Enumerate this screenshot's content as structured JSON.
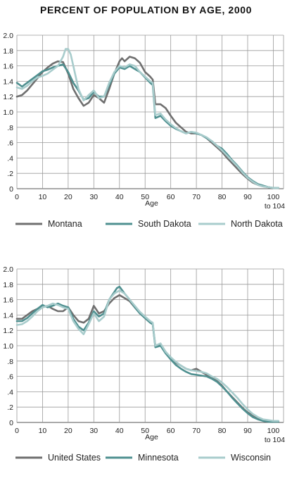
{
  "title": "PERCENT OF POPULATION BY AGE, 2000",
  "chart_data": [
    {
      "type": "line",
      "xlabel": "Age",
      "xlim": [
        0,
        104
      ],
      "ylim": [
        0,
        2.0
      ],
      "x_ticks": [
        "0",
        "10",
        "20",
        "30",
        "40",
        "50",
        "60",
        "70",
        "80",
        "90",
        "100"
      ],
      "x_end_label": "to 104",
      "y_ticks": [
        "0",
        ".2",
        ".4",
        ".6",
        ".8",
        "1.0",
        "1.2",
        "1.4",
        "1.6",
        "1.8",
        "2.0"
      ],
      "grid": true,
      "legend_position": "bottom",
      "series": [
        {
          "name": "Montana",
          "color": "#6f6f6f",
          "x": [
            0,
            2,
            4,
            6,
            8,
            10,
            12,
            14,
            16,
            18,
            20,
            22,
            24,
            26,
            28,
            30,
            32,
            34,
            36,
            38,
            40,
            41,
            42,
            44,
            46,
            48,
            50,
            52,
            53,
            54,
            56,
            58,
            60,
            62,
            64,
            66,
            68,
            70,
            72,
            74,
            76,
            78,
            80,
            82,
            84,
            86,
            88,
            90,
            92,
            94,
            96,
            98,
            100,
            102
          ],
          "values": [
            1.2,
            1.22,
            1.28,
            1.36,
            1.44,
            1.52,
            1.58,
            1.63,
            1.66,
            1.65,
            1.5,
            1.3,
            1.18,
            1.08,
            1.12,
            1.22,
            1.18,
            1.12,
            1.3,
            1.5,
            1.66,
            1.7,
            1.66,
            1.72,
            1.7,
            1.64,
            1.52,
            1.46,
            1.42,
            1.1,
            1.1,
            1.05,
            0.95,
            0.86,
            0.8,
            0.74,
            0.72,
            0.72,
            0.7,
            0.66,
            0.6,
            0.54,
            0.48,
            0.4,
            0.33,
            0.26,
            0.19,
            0.13,
            0.08,
            0.05,
            0.03,
            0.02,
            0.01,
            0.01
          ]
        },
        {
          "name": "South Dakota",
          "color": "#4f9090",
          "x": [
            0,
            2,
            4,
            6,
            8,
            10,
            12,
            14,
            16,
            18,
            20,
            22,
            24,
            26,
            28,
            30,
            32,
            34,
            36,
            38,
            40,
            42,
            44,
            46,
            48,
            50,
            52,
            53,
            54,
            56,
            58,
            60,
            62,
            64,
            66,
            68,
            70,
            72,
            74,
            76,
            78,
            80,
            82,
            84,
            86,
            88,
            90,
            92,
            94,
            96,
            98,
            100,
            102
          ],
          "values": [
            1.38,
            1.33,
            1.38,
            1.43,
            1.48,
            1.53,
            1.55,
            1.58,
            1.6,
            1.62,
            1.52,
            1.38,
            1.28,
            1.16,
            1.18,
            1.26,
            1.2,
            1.2,
            1.35,
            1.5,
            1.58,
            1.56,
            1.6,
            1.56,
            1.52,
            1.45,
            1.38,
            1.35,
            0.92,
            0.95,
            0.88,
            0.82,
            0.78,
            0.75,
            0.72,
            0.74,
            0.72,
            0.7,
            0.66,
            0.62,
            0.56,
            0.52,
            0.45,
            0.37,
            0.3,
            0.22,
            0.15,
            0.1,
            0.06,
            0.04,
            0.02,
            0.01,
            0.01
          ]
        },
        {
          "name": "North Dakota",
          "color": "#a8cccc",
          "x": [
            0,
            2,
            4,
            6,
            8,
            10,
            12,
            14,
            16,
            18,
            19,
            20,
            21,
            22,
            24,
            26,
            28,
            30,
            32,
            34,
            36,
            38,
            40,
            42,
            44,
            46,
            48,
            50,
            52,
            53,
            54,
            56,
            58,
            60,
            62,
            64,
            66,
            68,
            70,
            72,
            74,
            76,
            78,
            80,
            82,
            84,
            86,
            88,
            90,
            92,
            94,
            96,
            98,
            100,
            102
          ],
          "values": [
            1.32,
            1.3,
            1.34,
            1.4,
            1.45,
            1.47,
            1.5,
            1.55,
            1.6,
            1.72,
            1.82,
            1.82,
            1.75,
            1.6,
            1.3,
            1.15,
            1.22,
            1.28,
            1.18,
            1.2,
            1.38,
            1.52,
            1.6,
            1.58,
            1.62,
            1.6,
            1.52,
            1.46,
            1.4,
            1.38,
            0.96,
            0.98,
            0.9,
            0.84,
            0.79,
            0.75,
            0.72,
            0.74,
            0.73,
            0.7,
            0.67,
            0.62,
            0.56,
            0.5,
            0.43,
            0.36,
            0.29,
            0.21,
            0.14,
            0.09,
            0.05,
            0.03,
            0.02,
            0.01,
            0.01
          ]
        }
      ]
    },
    {
      "type": "line",
      "xlabel": "Age",
      "xlim": [
        0,
        104
      ],
      "ylim": [
        0,
        2.0
      ],
      "x_ticks": [
        "0",
        "10",
        "20",
        "30",
        "40",
        "50",
        "60",
        "70",
        "80",
        "90",
        "100"
      ],
      "x_end_label": "to 104",
      "y_ticks": [
        "0",
        ".2",
        ".4",
        ".6",
        ".8",
        "1.0",
        "1.2",
        "1.4",
        "1.6",
        "1.8",
        "2.0"
      ],
      "grid": true,
      "legend_position": "bottom",
      "series": [
        {
          "name": "United States",
          "color": "#6f6f6f",
          "x": [
            0,
            2,
            4,
            6,
            8,
            10,
            12,
            14,
            16,
            18,
            20,
            22,
            24,
            26,
            28,
            30,
            32,
            34,
            36,
            38,
            40,
            42,
            44,
            46,
            48,
            50,
            52,
            53,
            54,
            56,
            58,
            60,
            62,
            64,
            66,
            68,
            70,
            72,
            74,
            76,
            78,
            80,
            82,
            84,
            86,
            88,
            90,
            92,
            94,
            96,
            98,
            100,
            102
          ],
          "values": [
            1.35,
            1.35,
            1.4,
            1.45,
            1.48,
            1.5,
            1.52,
            1.48,
            1.45,
            1.45,
            1.5,
            1.4,
            1.32,
            1.3,
            1.35,
            1.52,
            1.42,
            1.45,
            1.55,
            1.62,
            1.66,
            1.62,
            1.58,
            1.5,
            1.42,
            1.36,
            1.3,
            1.28,
            1.0,
            1.02,
            0.92,
            0.84,
            0.78,
            0.74,
            0.7,
            0.68,
            0.7,
            0.66,
            0.62,
            0.58,
            0.54,
            0.48,
            0.4,
            0.33,
            0.26,
            0.19,
            0.13,
            0.09,
            0.05,
            0.03,
            0.02,
            0.01,
            0.01
          ]
        },
        {
          "name": "Minnesota",
          "color": "#4f9090",
          "x": [
            0,
            2,
            4,
            6,
            8,
            10,
            12,
            14,
            16,
            18,
            20,
            22,
            24,
            26,
            28,
            30,
            32,
            34,
            36,
            38,
            39,
            40,
            42,
            44,
            46,
            48,
            50,
            52,
            53,
            54,
            56,
            58,
            60,
            62,
            64,
            66,
            68,
            70,
            72,
            74,
            76,
            78,
            80,
            82,
            84,
            86,
            88,
            90,
            92,
            94,
            96,
            98,
            100,
            102
          ],
          "values": [
            1.32,
            1.32,
            1.36,
            1.42,
            1.48,
            1.53,
            1.5,
            1.52,
            1.55,
            1.52,
            1.5,
            1.35,
            1.25,
            1.2,
            1.3,
            1.45,
            1.38,
            1.42,
            1.6,
            1.7,
            1.75,
            1.77,
            1.68,
            1.6,
            1.5,
            1.42,
            1.36,
            1.3,
            1.28,
            0.98,
            1.0,
            0.9,
            0.82,
            0.75,
            0.7,
            0.66,
            0.63,
            0.62,
            0.61,
            0.6,
            0.57,
            0.53,
            0.47,
            0.4,
            0.32,
            0.25,
            0.18,
            0.12,
            0.07,
            0.04,
            0.02,
            0.01,
            0.01,
            0.01
          ]
        },
        {
          "name": "Wisconsin",
          "color": "#a8cccc",
          "x": [
            0,
            2,
            4,
            6,
            8,
            10,
            12,
            14,
            16,
            18,
            20,
            22,
            24,
            26,
            28,
            30,
            32,
            34,
            36,
            38,
            40,
            42,
            44,
            46,
            48,
            50,
            52,
            53,
            54,
            56,
            58,
            60,
            62,
            64,
            66,
            68,
            70,
            72,
            74,
            76,
            78,
            80,
            82,
            84,
            86,
            88,
            90,
            92,
            94,
            96,
            98,
            100,
            102
          ],
          "values": [
            1.27,
            1.28,
            1.32,
            1.38,
            1.45,
            1.5,
            1.52,
            1.55,
            1.53,
            1.5,
            1.48,
            1.32,
            1.22,
            1.15,
            1.28,
            1.42,
            1.32,
            1.38,
            1.6,
            1.68,
            1.72,
            1.68,
            1.6,
            1.52,
            1.44,
            1.38,
            1.32,
            1.3,
            1.0,
            1.03,
            0.92,
            0.85,
            0.79,
            0.74,
            0.7,
            0.68,
            0.67,
            0.66,
            0.64,
            0.6,
            0.57,
            0.52,
            0.46,
            0.39,
            0.32,
            0.24,
            0.17,
            0.11,
            0.07,
            0.04,
            0.03,
            0.02,
            0.02
          ]
        }
      ]
    }
  ]
}
